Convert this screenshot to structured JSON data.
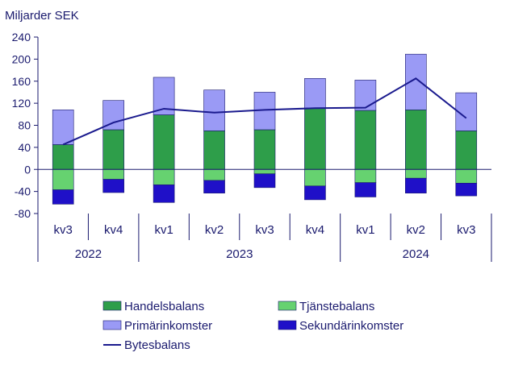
{
  "chart_data": {
    "type": "bar",
    "subtype": "stacked-bar-with-line",
    "unit_label": "Miljarder SEK",
    "categories": [
      "kv3",
      "kv4",
      "kv1",
      "kv2",
      "kv3",
      "kv4",
      "kv1",
      "kv2",
      "kv3"
    ],
    "years": [
      {
        "label": "2022",
        "start": 0,
        "end": 2
      },
      {
        "label": "2023",
        "start": 2,
        "end": 6
      },
      {
        "label": "2024",
        "start": 6,
        "end": 9
      }
    ],
    "ylim": [
      -80,
      240
    ],
    "yticks": [
      -80,
      -40,
      0,
      40,
      80,
      120,
      160,
      200,
      240
    ],
    "series": [
      {
        "name": "Handelsbalans",
        "kind": "bar",
        "color": "#2e9e4a",
        "values": [
          45,
          72,
          99,
          70,
          72,
          111,
          107,
          108,
          70
        ]
      },
      {
        "name": "Tjänstebalans",
        "kind": "bar",
        "color": "#66d270",
        "values": [
          -37,
          -18,
          -28,
          -20,
          -8,
          -30,
          -24,
          -16,
          -25
        ]
      },
      {
        "name": "Primärinkomster",
        "kind": "bar",
        "color": "#9a9af5",
        "values": [
          63,
          53,
          68,
          74,
          68,
          54,
          55,
          101,
          69
        ]
      },
      {
        "name": "Sekundärinkomster",
        "kind": "bar",
        "color": "#1f10c8",
        "values": [
          -26,
          -24,
          -32,
          -23,
          -25,
          -25,
          -26,
          -27,
          -23
        ]
      },
      {
        "name": "Bytesbalans",
        "kind": "line",
        "color": "#1a1a8e",
        "values": [
          45,
          85,
          110,
          103,
          108,
          111,
          112,
          165,
          93
        ]
      }
    ],
    "legend_position": "bottom"
  }
}
